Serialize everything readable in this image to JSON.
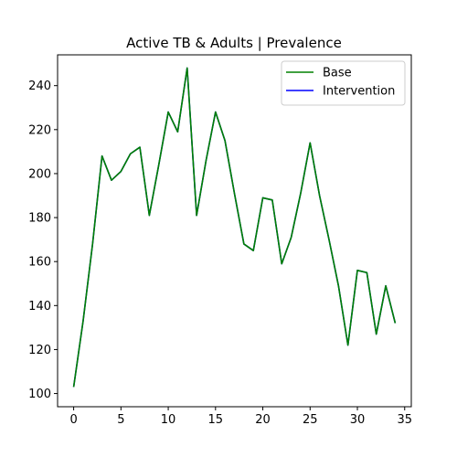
{
  "chart_data": {
    "type": "line",
    "title": "Active TB & Adults | Prevalence",
    "xlabel": "",
    "ylabel": "",
    "xlim": [
      -1.7,
      35.7
    ],
    "ylim": [
      94,
      254
    ],
    "xticks": [
      0,
      5,
      10,
      15,
      20,
      25,
      30,
      35
    ],
    "yticks": [
      100,
      120,
      140,
      160,
      180,
      200,
      220,
      240
    ],
    "grid": false,
    "legend_position": "top-right",
    "x": [
      0,
      1,
      2,
      3,
      4,
      5,
      6,
      7,
      8,
      9,
      10,
      11,
      12,
      13,
      14,
      15,
      16,
      17,
      18,
      19,
      20,
      21,
      22,
      23,
      24,
      25,
      26,
      27,
      28,
      29,
      30,
      31,
      32,
      33,
      34
    ],
    "series": [
      {
        "name": "Base",
        "color": "#008000",
        "values": [
          103,
          133,
          168,
          208,
          197,
          201,
          209,
          212,
          181,
          204,
          228,
          219,
          248,
          181,
          206,
          228,
          215,
          191,
          168,
          165,
          189,
          188,
          159,
          171,
          191,
          214,
          190,
          170,
          149,
          122,
          156,
          155,
          127,
          149,
          132
        ]
      },
      {
        "name": "Intervention",
        "color": "#0000ff",
        "values": [
          103,
          133,
          168,
          208,
          197,
          201,
          209,
          212,
          181,
          204,
          228,
          219,
          248,
          181,
          206,
          228,
          215,
          191,
          168,
          165,
          189,
          188,
          159,
          171,
          191,
          214,
          190,
          170,
          149,
          122,
          156,
          155,
          127,
          149,
          132
        ]
      }
    ]
  }
}
